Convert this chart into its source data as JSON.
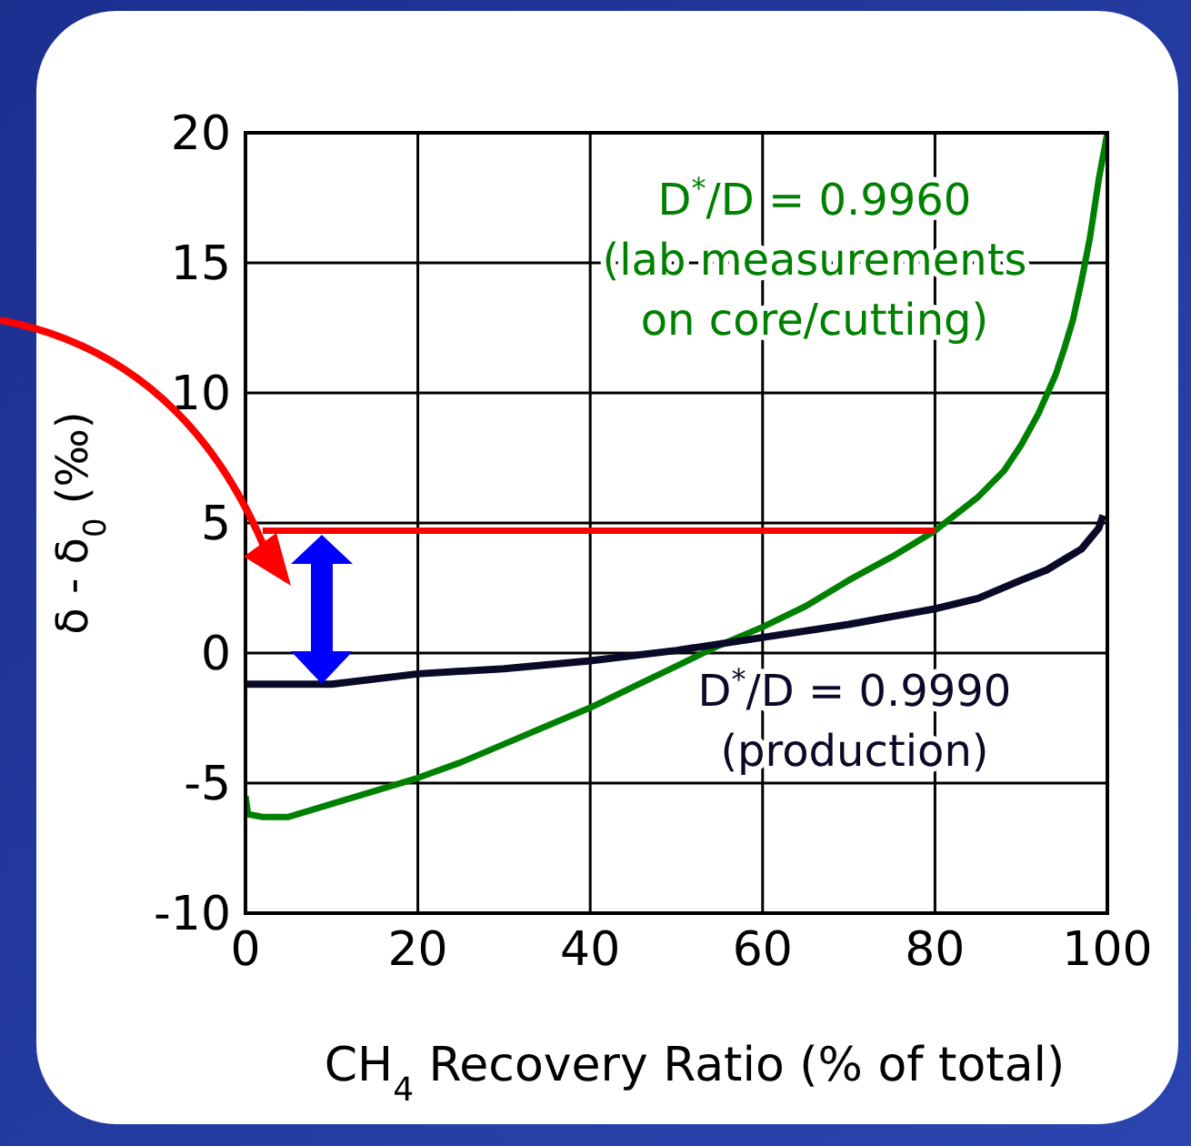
{
  "chart_data": {
    "type": "line",
    "xlabel": "CH$_{4}$ Recovery Ratio (% of total)",
    "ylabel": "δ - δ$_{0}$ (‰)",
    "xlim": [
      0,
      100
    ],
    "ylim": [
      -10,
      20
    ],
    "xticks": [
      0,
      20,
      40,
      60,
      80,
      100
    ],
    "yticks": [
      -10,
      -5,
      0,
      5,
      10,
      15,
      20
    ],
    "grid": true,
    "marker": "none",
    "line_style": "solid",
    "series": [
      {
        "color": "#008000",
        "x": [
          0,
          0.3,
          2,
          5,
          8,
          10,
          15,
          20,
          25,
          30,
          35,
          40,
          45,
          50,
          55,
          60,
          65,
          70,
          75,
          80,
          85,
          88,
          90,
          92,
          94,
          95,
          96,
          97,
          98,
          99,
          100
        ],
        "values": [
          -5.5,
          -6.2,
          -6.3,
          -6.3,
          -6.0,
          -5.8,
          -5.3,
          -4.8,
          -4.2,
          -3.5,
          -2.8,
          -2.1,
          -1.3,
          -0.5,
          0.3,
          1.0,
          1.8,
          2.8,
          3.7,
          4.7,
          6.0,
          7.0,
          8.0,
          9.2,
          10.7,
          11.7,
          12.8,
          14.3,
          16.0,
          18.2,
          20
        ]
      },
      {
        "color": "#0a0a28",
        "x": [
          0,
          5,
          10,
          20,
          30,
          40,
          50,
          60,
          70,
          80,
          85,
          90,
          93,
          95,
          97,
          98,
          99,
          99.5
        ],
        "values": [
          -1.2,
          -1.2,
          -1.2,
          -0.8,
          -0.6,
          -0.3,
          0.1,
          0.6,
          1.1,
          1.7,
          2.1,
          2.8,
          3.2,
          3.6,
          4.0,
          4.4,
          4.8,
          5.3
        ]
      },
      {
        "color": "#ff0000",
        "x": [
          2,
          80
        ],
        "values": [
          4.7,
          4.7
        ]
      }
    ],
    "annotations": [
      "D$^{*}$/D = 0.9960\n(lab measurements\non core/cutting)",
      "D$^{*}$/D = 0.9990\n(production)"
    ]
  }
}
